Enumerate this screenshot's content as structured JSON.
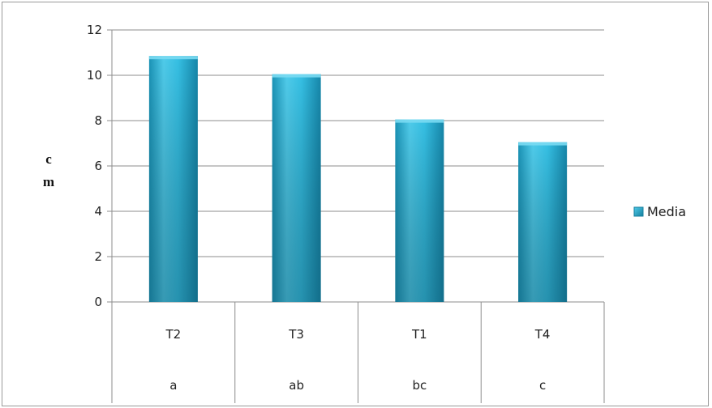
{
  "chart_data": {
    "type": "bar",
    "categories": [
      "T2",
      "T3",
      "T1",
      "T4"
    ],
    "group_labels": [
      "a",
      "ab",
      "bc",
      "c"
    ],
    "series": [
      {
        "name": "Media",
        "values": [
          10.85,
          10.05,
          8.05,
          7.05
        ]
      }
    ],
    "ylabel_lines": [
      "c",
      "m"
    ],
    "ylim": [
      0,
      12
    ],
    "yticks": [
      0,
      2,
      4,
      6,
      8,
      10,
      12
    ],
    "grid": true,
    "legend_position": "right",
    "colors": {
      "bar_light": "#4fcbea",
      "bar_mid": "#1fa9cf",
      "bar_dark": "#167f9e",
      "grid": "#8c8c8c"
    }
  }
}
